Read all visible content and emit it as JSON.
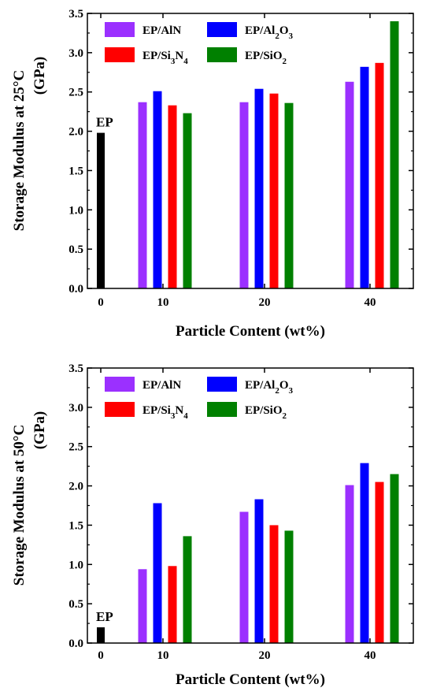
{
  "chart_data": [
    {
      "type": "bar",
      "title": "",
      "ylabel_line1": "Storage Modulus at 25°C",
      "ylabel_line2": "(GPa)",
      "xlabel": "Particle Content (wt%)",
      "ylim": [
        0,
        3.5
      ],
      "yticks": [
        "0.0",
        "0.5",
        "1.0",
        "1.5",
        "2.0",
        "2.5",
        "3.0",
        "3.5"
      ],
      "categories": [
        "0",
        "10",
        "20",
        "40"
      ],
      "ep": {
        "name": "EP",
        "value": 1.98,
        "color": "#000000"
      },
      "series": [
        {
          "name": "EP/AlN",
          "color": "#9b30ff",
          "values": [
            null,
            2.37,
            2.37,
            2.63
          ]
        },
        {
          "name": "EP/Al2O3",
          "color": "#0000ff",
          "values": [
            null,
            2.51,
            2.54,
            2.82
          ]
        },
        {
          "name": "EP/Si3N4",
          "color": "#ff0000",
          "values": [
            null,
            2.33,
            2.48,
            2.87
          ]
        },
        {
          "name": "EP/SiO2",
          "color": "#008000",
          "values": [
            null,
            2.23,
            2.36,
            3.4
          ]
        }
      ],
      "legend": "top-left"
    },
    {
      "type": "bar",
      "title": "",
      "ylabel_line1": "Storage Modulus at 50°C",
      "ylabel_line2": "(GPa)",
      "xlabel": "Particle Content (wt%)",
      "ylim": [
        0,
        3.5
      ],
      "yticks": [
        "0.0",
        "0.5",
        "1.0",
        "1.5",
        "2.0",
        "2.5",
        "3.0",
        "3.5"
      ],
      "categories": [
        "0",
        "10",
        "20",
        "40"
      ],
      "ep": {
        "name": "EP",
        "value": 0.2,
        "color": "#000000"
      },
      "series": [
        {
          "name": "EP/AlN",
          "color": "#9b30ff",
          "values": [
            null,
            0.94,
            1.67,
            2.01
          ]
        },
        {
          "name": "EP/Al2O3",
          "color": "#0000ff",
          "values": [
            null,
            1.78,
            1.83,
            2.29
          ]
        },
        {
          "name": "EP/Si3N4",
          "color": "#ff0000",
          "values": [
            null,
            0.98,
            1.5,
            2.05
          ]
        },
        {
          "name": "EP/SiO2",
          "color": "#008000",
          "values": [
            null,
            1.36,
            1.43,
            2.15
          ]
        }
      ],
      "legend": "top-left"
    }
  ]
}
